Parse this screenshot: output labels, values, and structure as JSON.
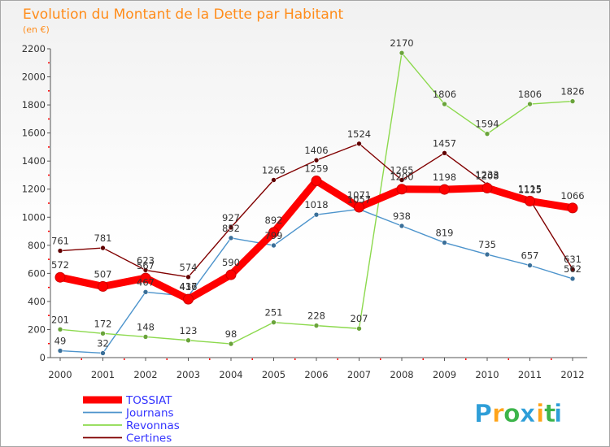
{
  "chart_data": {
    "type": "line",
    "title": "Evolution du Montant de la Dette par Habitant",
    "subtitle": "(en €)",
    "x": [
      "2000",
      "2001",
      "2002",
      "2003",
      "2004",
      "2005",
      "2006",
      "2007",
      "2008",
      "2009",
      "2010",
      "2011",
      "2012"
    ],
    "ylim": [
      0,
      2200
    ],
    "yticks": [
      0,
      200,
      400,
      600,
      800,
      1000,
      1200,
      1400,
      1600,
      1800,
      2000,
      2200
    ],
    "grid": false,
    "legend_position": "bottom-left",
    "series": [
      {
        "name": "TOSSIAT",
        "color": "#ff0000",
        "values": [
          572,
          507,
          567,
          416,
          590,
          892,
          1259,
          1071,
          1200,
          1198,
          1208,
          1115,
          1066
        ]
      },
      {
        "name": "Journans",
        "color": "#4d94cc",
        "values": [
          49,
          32,
          467,
          437,
          852,
          799,
          1018,
          1057,
          938,
          819,
          735,
          657,
          562
        ]
      },
      {
        "name": "Revonnas",
        "color": "#8cd94d",
        "values": [
          201,
          172,
          148,
          123,
          98,
          251,
          228,
          207,
          2170,
          1806,
          1594,
          1806,
          1826
        ]
      },
      {
        "name": "Certines",
        "color": "#800000",
        "values": [
          761,
          781,
          623,
          574,
          927,
          1265,
          1406,
          1524,
          1265,
          1457,
          1233,
          1125,
          631
        ]
      }
    ]
  },
  "brand": {
    "letters": [
      "P",
      "r",
      "o",
      "x",
      "i",
      "t",
      "i"
    ],
    "colors": [
      "#2e9ed8",
      "#ffa41a",
      "#3cb44a",
      "#2e9ed8",
      "#ffa41a",
      "#3cb44a",
      "#2e9ed8"
    ]
  }
}
